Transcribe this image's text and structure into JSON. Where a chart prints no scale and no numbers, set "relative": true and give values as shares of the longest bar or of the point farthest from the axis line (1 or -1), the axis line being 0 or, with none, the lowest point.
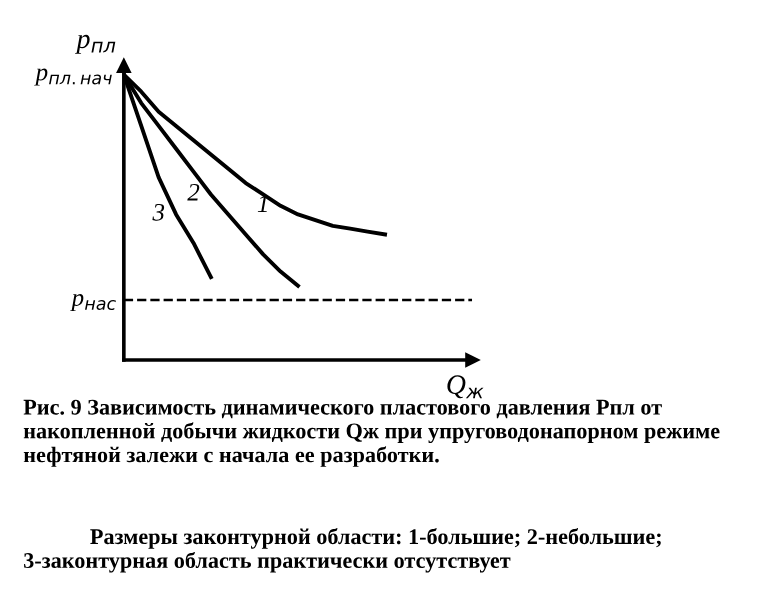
{
  "chart_data": {
    "type": "line",
    "relative": true,
    "xlabel": "Q$_{ж}$",
    "ylabel": "p$_{пл}$",
    "categories": [
      null,
      null,
      null,
      null,
      null,
      null,
      null,
      null,
      null,
      null,
      null,
      null,
      null,
      null,
      null,
      null,
      null,
      null,
      null,
      null,
      null
    ],
    "series": [
      {
        "name": "1",
        "color": "#000000",
        "values": [
          1,
          0.94,
          0.87,
          0.82,
          0.77,
          0.72,
          0.67,
          0.62,
          0.58,
          0.54,
          0.51,
          0.49,
          0.47,
          0.46,
          0.45,
          0.44,
          null,
          null,
          null,
          null,
          null
        ]
      },
      {
        "name": "2",
        "color": "#000000",
        "values": [
          1,
          0.9,
          0.82,
          0.74,
          0.66,
          0.58,
          0.51,
          0.44,
          0.37,
          0.31,
          0.26,
          null,
          null,
          null,
          null,
          null,
          null,
          null,
          null,
          null,
          null
        ]
      },
      {
        "name": "3",
        "color": "#000000",
        "values": [
          1,
          0.82,
          0.64,
          0.51,
          0.41,
          0.29,
          null,
          null,
          null,
          null,
          null,
          null,
          null,
          null,
          null,
          null,
          null,
          null,
          null,
          null,
          null
        ]
      }
    ],
    "ref_lines": [
      {
        "axis": "y",
        "value": 0.21,
        "label": "p$_{нас}$",
        "color": "#000000",
        "line_style": "dashed"
      }
    ],
    "annotations": [
      "p$_{пл.нач}$",
      "Рис. 9 Зависимость динамического пластового давления Рпл от накопленной добычи жидкости Qж при упруговодонапорном режиме нефтяной залежи с начала ее разработки.",
      "Размеры законтурной области: 1-большие; 2-небольшие; 3-законтурная область практически отсутствует"
    ],
    "marker": "none",
    "line_style": "solid",
    "grid": false,
    "legend": false
  }
}
